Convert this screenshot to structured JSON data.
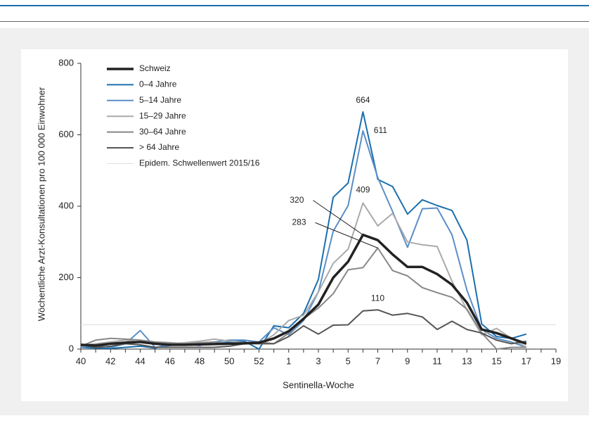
{
  "chart_data": {
    "type": "line",
    "ylabel": "Wöchentliche Arzt-Konsultationen pro 100 000 Einwohner",
    "xlabel": "Sentinella-Woche",
    "categories": [
      "40",
      null,
      "42",
      null,
      "44",
      null,
      "46",
      null,
      "48",
      null,
      "50",
      null,
      "52",
      null,
      "1",
      null,
      "3",
      null,
      "5",
      null,
      "7",
      null,
      "9",
      null,
      "11",
      null,
      "13",
      null,
      "15",
      null,
      "17",
      null,
      "19"
    ],
    "ylim": [
      0,
      800
    ],
    "yticks": [
      0,
      200,
      400,
      600,
      800
    ],
    "series": [
      {
        "name": "Schweiz",
        "color": "#222222",
        "values": [
          12,
          10,
          15,
          18,
          20,
          15,
          12,
          12,
          13,
          14,
          15,
          16,
          18,
          30,
          50,
          85,
          125,
          200,
          245,
          320,
          305,
          265,
          230,
          230,
          210,
          180,
          130,
          55,
          45,
          30,
          15,
          null,
          null
        ],
        "value_labels": [
          null,
          null,
          null,
          null,
          null,
          null,
          null,
          null,
          null,
          null,
          null,
          null,
          null,
          null,
          null,
          null,
          null,
          null,
          null,
          "320",
          null,
          null,
          null,
          null,
          null,
          null,
          null,
          null,
          null,
          null,
          null,
          null,
          null
        ]
      },
      {
        "name": "0–4 Jahre",
        "color": "#1a6fad",
        "values": [
          5,
          3,
          2,
          5,
          8,
          3,
          15,
          15,
          12,
          15,
          20,
          22,
          0,
          65,
          60,
          100,
          195,
          425,
          465,
          664,
          475,
          455,
          378,
          418,
          402,
          388,
          305,
          70,
          35,
          30,
          42,
          null,
          null
        ],
        "value_labels": [
          null,
          null,
          null,
          null,
          null,
          null,
          null,
          null,
          null,
          null,
          null,
          null,
          null,
          null,
          null,
          null,
          null,
          null,
          null,
          "664",
          null,
          null,
          null,
          null,
          null,
          null,
          null,
          null,
          null,
          null,
          null,
          null,
          null
        ]
      },
      {
        "name": "5–14 Jahre",
        "color": "#5b8ec7",
        "values": [
          5,
          10,
          5,
          15,
          52,
          5,
          10,
          15,
          10,
          20,
          25,
          25,
          20,
          60,
          40,
          80,
          160,
          330,
          402,
          611,
          480,
          385,
          285,
          393,
          395,
          320,
          165,
          55,
          30,
          20,
          5,
          null,
          null
        ],
        "value_labels": [
          null,
          null,
          null,
          null,
          null,
          null,
          null,
          null,
          null,
          null,
          null,
          null,
          null,
          null,
          null,
          null,
          null,
          null,
          null,
          "611",
          null,
          null,
          null,
          null,
          null,
          null,
          null,
          null,
          null,
          null,
          null,
          null,
          null
        ]
      },
      {
        "name": "15–29 Jahre",
        "color": "#aaaaaa",
        "values": [
          10,
          15,
          20,
          25,
          20,
          15,
          15,
          18,
          22,
          28,
          22,
          18,
          15,
          40,
          80,
          95,
          160,
          240,
          280,
          409,
          345,
          380,
          300,
          292,
          287,
          190,
          110,
          40,
          58,
          30,
          5,
          null,
          null
        ],
        "value_labels": [
          null,
          null,
          null,
          null,
          null,
          null,
          null,
          null,
          null,
          null,
          null,
          null,
          null,
          null,
          null,
          null,
          null,
          null,
          null,
          "409",
          null,
          null,
          null,
          null,
          null,
          null,
          null,
          null,
          null,
          null,
          null,
          null,
          null
        ]
      },
      {
        "name": "30–64 Jahre",
        "color": "#888888",
        "values": [
          8,
          25,
          30,
          28,
          25,
          20,
          18,
          15,
          18,
          20,
          15,
          18,
          20,
          15,
          45,
          85,
          115,
          155,
          222,
          228,
          283,
          220,
          205,
          172,
          158,
          145,
          112,
          45,
          0,
          5,
          5,
          null,
          null
        ],
        "value_labels": [
          null,
          null,
          null,
          null,
          null,
          null,
          null,
          null,
          null,
          null,
          null,
          null,
          null,
          null,
          null,
          null,
          null,
          null,
          null,
          null,
          "283",
          null,
          null,
          null,
          null,
          null,
          null,
          null,
          null,
          null,
          null,
          null,
          null
        ]
      },
      {
        "name": "> 64 Jahre",
        "color": "#555555",
        "values": [
          12,
          5,
          8,
          15,
          12,
          5,
          5,
          5,
          5,
          5,
          8,
          15,
          15,
          15,
          35,
          65,
          42,
          67,
          68,
          107,
          110,
          95,
          100,
          90,
          55,
          78,
          55,
          45,
          25,
          15,
          22,
          null,
          null
        ],
        "value_labels": [
          null,
          null,
          null,
          null,
          null,
          null,
          null,
          null,
          null,
          null,
          null,
          null,
          null,
          null,
          null,
          null,
          null,
          null,
          null,
          null,
          "110",
          null,
          null,
          null,
          null,
          null,
          null,
          null,
          null,
          null,
          null,
          null,
          null
        ]
      }
    ],
    "threshold": {
      "name": "Epidem. Schwellenwert 2015/16",
      "value": 68,
      "color": "#dddddd"
    }
  }
}
